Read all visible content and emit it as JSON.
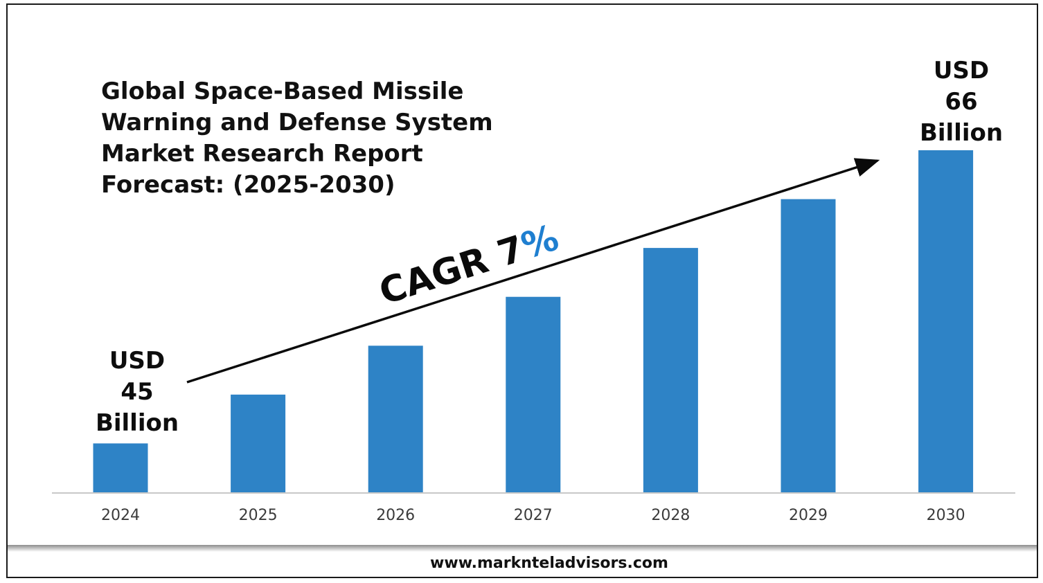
{
  "chart_data": {
    "type": "bar",
    "title_lines": [
      "Global Space-Based Missile",
      "Warning and Defense System",
      "Market Research Report",
      "Forecast: (2025-2030)"
    ],
    "categories": [
      "2024",
      "2025",
      "2026",
      "2027",
      "2028",
      "2029",
      "2030"
    ],
    "values": [
      45,
      48.5,
      52,
      55.5,
      59,
      62.5,
      66
    ],
    "bar_color": "#2e83c6",
    "ylim": [
      41.5,
      66
    ],
    "grid": false,
    "legend": "none",
    "start_label": [
      "USD",
      "45",
      "Billion"
    ],
    "end_label": [
      "USD",
      "66",
      "Billion"
    ],
    "cagr_label": {
      "prefix": "CAGR 7",
      "suffix": "%"
    },
    "cagr_suffix_color": "#1f7fd0"
  },
  "footer": {
    "url": "www.marknteladvisors.com"
  }
}
